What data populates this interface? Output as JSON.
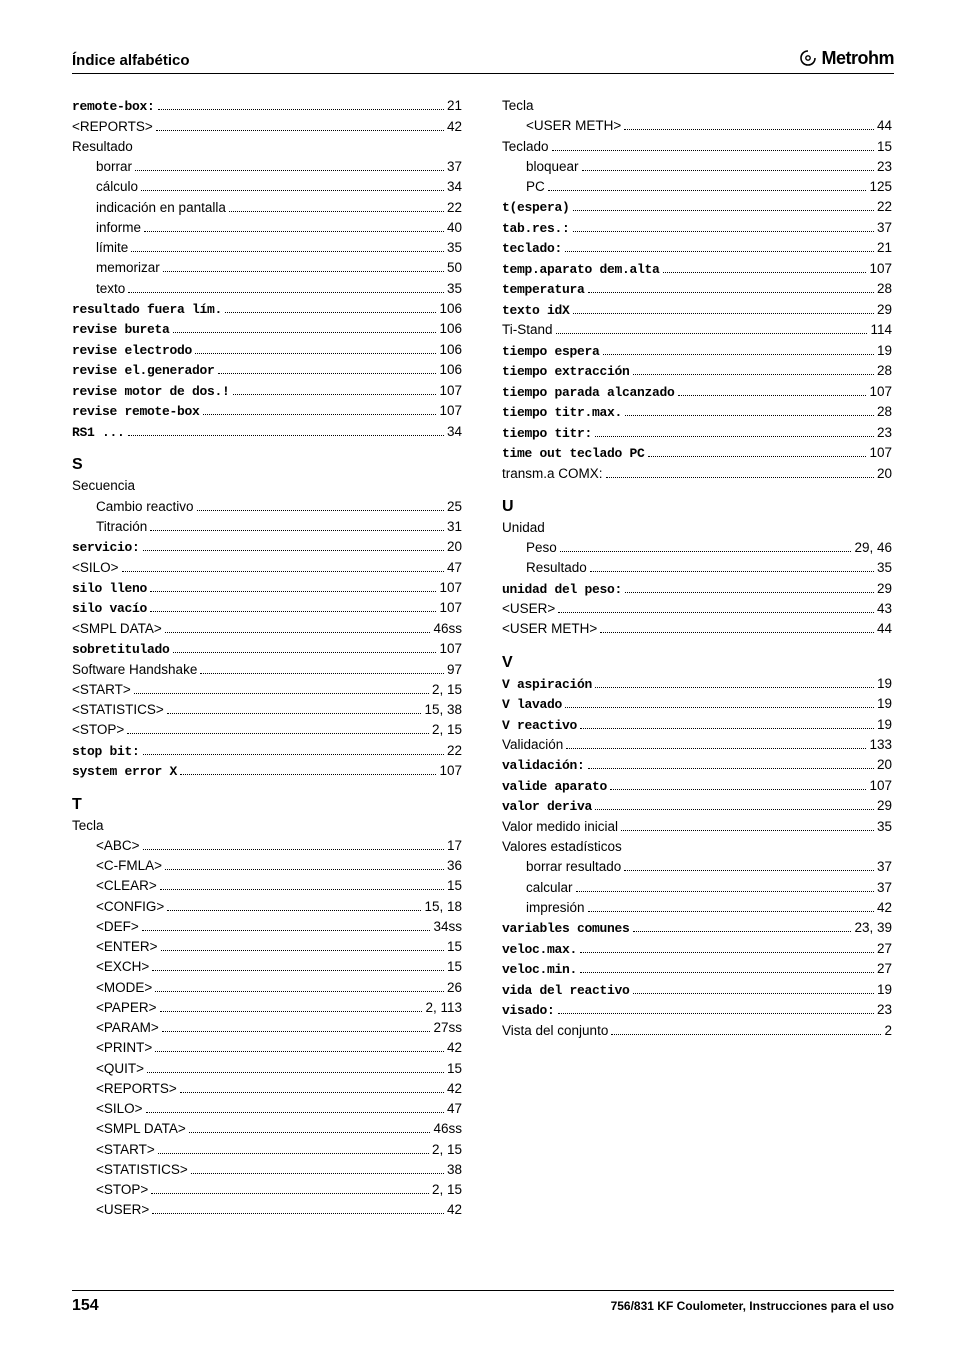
{
  "header": {
    "title": "Índice alfabético",
    "logo_text": "Metrohm"
  },
  "footer": {
    "page_number": "154",
    "doc_title": "756/831 KF Coulometer, Instrucciones para el uso"
  },
  "left_sections": [
    {
      "letter": "",
      "entries": [
        {
          "label": "remote-box:",
          "mono": true,
          "page": "21",
          "indent": false
        },
        {
          "label": "<REPORTS>",
          "mono": false,
          "page": "42",
          "indent": false
        },
        {
          "label": "Resultado",
          "mono": false,
          "page": "",
          "indent": false,
          "heading": true
        },
        {
          "label": "borrar",
          "mono": false,
          "page": "37",
          "indent": true
        },
        {
          "label": "cálculo",
          "mono": false,
          "page": "34",
          "indent": true
        },
        {
          "label": "indicación en pantalla",
          "mono": false,
          "page": "22",
          "indent": true
        },
        {
          "label": "informe",
          "mono": false,
          "page": "40",
          "indent": true
        },
        {
          "label": "límite",
          "mono": false,
          "page": "35",
          "indent": true
        },
        {
          "label": "memorizar",
          "mono": false,
          "page": "50",
          "indent": true
        },
        {
          "label": "texto",
          "mono": false,
          "page": "35",
          "indent": true
        },
        {
          "label": "resultado fuera lím.",
          "mono": true,
          "page": "106",
          "indent": false
        },
        {
          "label": "revise bureta",
          "mono": true,
          "page": "106",
          "indent": false
        },
        {
          "label": "revise electrodo",
          "mono": true,
          "page": "106",
          "indent": false
        },
        {
          "label": "revise el.generador",
          "mono": true,
          "page": "106",
          "indent": false
        },
        {
          "label": "revise motor de dos.!",
          "mono": true,
          "page": "107",
          "indent": false
        },
        {
          "label": "revise remote-box",
          "mono": true,
          "page": "107",
          "indent": false
        },
        {
          "label": "RS1 ...",
          "mono": true,
          "page": "34",
          "indent": false
        }
      ]
    },
    {
      "letter": "S",
      "entries": [
        {
          "label": "Secuencia",
          "mono": false,
          "page": "",
          "indent": false,
          "heading": true
        },
        {
          "label": "Cambio reactivo",
          "mono": false,
          "page": "25",
          "indent": true
        },
        {
          "label": "Titración",
          "mono": false,
          "page": "31",
          "indent": true
        },
        {
          "label": "servicio:",
          "mono": true,
          "page": "20",
          "indent": false
        },
        {
          "label": "<SILO>",
          "mono": false,
          "page": "47",
          "indent": false
        },
        {
          "label": "silo lleno",
          "mono": true,
          "page": "107",
          "indent": false
        },
        {
          "label": "silo vacío",
          "mono": true,
          "page": "107",
          "indent": false
        },
        {
          "label": "<SMPL DATA>",
          "mono": false,
          "page": "46ss",
          "indent": false
        },
        {
          "label": "sobretitulado",
          "mono": true,
          "page": "107",
          "indent": false
        },
        {
          "label": "Software Handshake",
          "mono": false,
          "page": "97",
          "indent": false
        },
        {
          "label": "<START>",
          "mono": false,
          "page": "2, 15",
          "indent": false
        },
        {
          "label": "<STATISTICS>",
          "mono": false,
          "page": "15, 38",
          "indent": false
        },
        {
          "label": "<STOP>",
          "mono": false,
          "page": "2, 15",
          "indent": false
        },
        {
          "label": "stop bit:",
          "mono": true,
          "page": "22",
          "indent": false
        },
        {
          "label": "system error X",
          "mono": true,
          "page": "107",
          "indent": false
        }
      ]
    },
    {
      "letter": "T",
      "entries": [
        {
          "label": "Tecla",
          "mono": false,
          "page": "",
          "indent": false,
          "heading": true
        },
        {
          "label": "<ABC>",
          "mono": false,
          "page": "17",
          "indent": true
        },
        {
          "label": "<C-FMLA>",
          "mono": false,
          "page": "36",
          "indent": true
        },
        {
          "label": "<CLEAR>",
          "mono": false,
          "page": "15",
          "indent": true
        },
        {
          "label": "<CONFIG>",
          "mono": false,
          "page": "15, 18",
          "indent": true
        },
        {
          "label": "<DEF>",
          "mono": false,
          "page": "34ss",
          "indent": true
        },
        {
          "label": "<ENTER>",
          "mono": false,
          "page": "15",
          "indent": true
        },
        {
          "label": "<EXCH>",
          "mono": false,
          "page": "15",
          "indent": true
        },
        {
          "label": "<MODE>",
          "mono": false,
          "page": "26",
          "indent": true
        },
        {
          "label": "<PAPER>",
          "mono": false,
          "page": "2, 113",
          "indent": true
        },
        {
          "label": "<PARAM>",
          "mono": false,
          "page": "27ss",
          "indent": true
        },
        {
          "label": "<PRINT>",
          "mono": false,
          "page": "42",
          "indent": true
        },
        {
          "label": "<QUIT>",
          "mono": false,
          "page": "15",
          "indent": true
        },
        {
          "label": "<REPORTS>",
          "mono": false,
          "page": "42",
          "indent": true
        },
        {
          "label": "<SILO>",
          "mono": false,
          "page": "47",
          "indent": true
        },
        {
          "label": "<SMPL DATA>",
          "mono": false,
          "page": "46ss",
          "indent": true
        },
        {
          "label": "<START>",
          "mono": false,
          "page": "2, 15",
          "indent": true
        },
        {
          "label": "<STATISTICS>",
          "mono": false,
          "page": "38",
          "indent": true
        },
        {
          "label": "<STOP>",
          "mono": false,
          "page": "2, 15",
          "indent": true
        },
        {
          "label": "<USER>",
          "mono": false,
          "page": "42",
          "indent": true
        }
      ]
    }
  ],
  "right_sections": [
    {
      "letter": "",
      "entries": [
        {
          "label": "Tecla",
          "mono": false,
          "page": "",
          "indent": false,
          "heading": true
        },
        {
          "label": "<USER METH>",
          "mono": false,
          "page": "44",
          "indent": true
        },
        {
          "label": "Teclado",
          "mono": false,
          "page": "15",
          "indent": false
        },
        {
          "label": "bloquear",
          "mono": false,
          "page": "23",
          "indent": true
        },
        {
          "label": "PC",
          "mono": false,
          "page": "125",
          "indent": true
        },
        {
          "label": "t(espera)",
          "mono": true,
          "page": "22",
          "indent": false
        },
        {
          "label": "tab.res.:",
          "mono": true,
          "page": "37",
          "indent": false
        },
        {
          "label": "teclado:",
          "mono": true,
          "page": "21",
          "indent": false
        },
        {
          "label": "temp.aparato dem.alta",
          "mono": true,
          "page": "107",
          "indent": false
        },
        {
          "label": "temperatura",
          "mono": true,
          "page": "28",
          "indent": false
        },
        {
          "label": "texto idX",
          "mono": true,
          "page": "29",
          "indent": false
        },
        {
          "label": "Ti-Stand",
          "mono": false,
          "page": "114",
          "indent": false
        },
        {
          "label": "tiempo espera",
          "mono": true,
          "page": "19",
          "indent": false
        },
        {
          "label": "tiempo extracción",
          "mono": true,
          "page": "28",
          "indent": false
        },
        {
          "label": "tiempo parada alcanzado",
          "mono": true,
          "page": "107",
          "indent": false
        },
        {
          "label": "tiempo titr.max.",
          "mono": true,
          "page": "28",
          "indent": false
        },
        {
          "label": "tiempo titr:",
          "mono": true,
          "page": "23",
          "indent": false
        },
        {
          "label": "time out teclado PC",
          "mono": true,
          "page": "107",
          "indent": false
        },
        {
          "label": "transm.a COMX:",
          "mono": false,
          "page": "20",
          "indent": false
        }
      ]
    },
    {
      "letter": "U",
      "entries": [
        {
          "label": "Unidad",
          "mono": false,
          "page": "",
          "indent": false,
          "heading": true
        },
        {
          "label": "Peso",
          "mono": false,
          "page": "29, 46",
          "indent": true
        },
        {
          "label": "Resultado",
          "mono": false,
          "page": "35",
          "indent": true
        },
        {
          "label": "unidad del peso:",
          "mono": true,
          "page": "29",
          "indent": false
        },
        {
          "label": "<USER>",
          "mono": false,
          "page": "43",
          "indent": false
        },
        {
          "label": "<USER METH>",
          "mono": false,
          "page": "44",
          "indent": false
        }
      ]
    },
    {
      "letter": "V",
      "entries": [
        {
          "label": "V aspiración",
          "mono": true,
          "page": "19",
          "indent": false
        },
        {
          "label": "V lavado",
          "mono": true,
          "page": "19",
          "indent": false
        },
        {
          "label": "V reactivo",
          "mono": true,
          "page": "19",
          "indent": false
        },
        {
          "label": "Validación",
          "mono": false,
          "page": "133",
          "indent": false
        },
        {
          "label": "validación:",
          "mono": true,
          "page": "20",
          "indent": false
        },
        {
          "label": "valide aparato",
          "mono": true,
          "page": "107",
          "indent": false
        },
        {
          "label": "valor deriva",
          "mono": true,
          "page": "29",
          "indent": false
        },
        {
          "label": "Valor medido inicial",
          "mono": false,
          "page": "35",
          "indent": false
        },
        {
          "label": "Valores estadísticos",
          "mono": false,
          "page": "",
          "indent": false,
          "heading": true
        },
        {
          "label": "borrar resultado",
          "mono": false,
          "page": "37",
          "indent": true
        },
        {
          "label": "calcular",
          "mono": false,
          "page": "37",
          "indent": true
        },
        {
          "label": "impresión",
          "mono": false,
          "page": "42",
          "indent": true
        },
        {
          "label": "variables comunes",
          "mono": true,
          "page": "23, 39",
          "indent": false
        },
        {
          "label": "veloc.max.",
          "mono": true,
          "page": "27",
          "indent": false
        },
        {
          "label": "veloc.min.",
          "mono": true,
          "page": "27",
          "indent": false
        },
        {
          "label": "vida del reactivo",
          "mono": true,
          "page": "19",
          "indent": false
        },
        {
          "label": "visado:",
          "mono": true,
          "page": "23",
          "indent": false
        },
        {
          "label": "Vista del conjunto",
          "mono": false,
          "page": "2",
          "indent": false
        }
      ]
    }
  ]
}
